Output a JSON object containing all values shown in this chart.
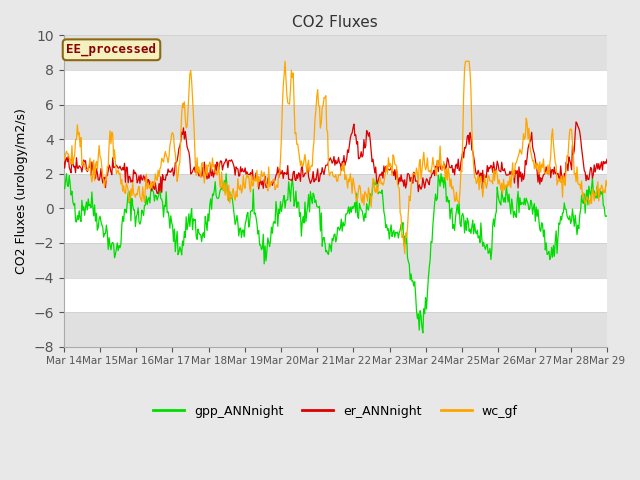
{
  "title": "CO2 Fluxes",
  "ylabel": "CO2 Fluxes (urology/m2/s)",
  "ylim": [
    -8,
    10
  ],
  "yticks": [
    -8,
    -6,
    -4,
    -2,
    0,
    2,
    4,
    6,
    8,
    10
  ],
  "date_labels": [
    "Mar 14",
    "Mar 15",
    "Mar 16",
    "Mar 17",
    "Mar 18",
    "Mar 19",
    "Mar 20",
    "Mar 21",
    "Mar 22",
    "Mar 23",
    "Mar 24",
    "Mar 25",
    "Mar 26",
    "Mar 27",
    "Mar 28",
    "Mar 29"
  ],
  "annotation": "EE_processed",
  "annotation_color": "#8B0000",
  "annotation_bg": "#F5F0C0",
  "annotation_edge": "#8B6914",
  "line_colors": {
    "gpp": "#00DD00",
    "er": "#DD0000",
    "wc": "#FFA500"
  },
  "legend_labels": [
    "gpp_ANNnight",
    "er_ANNnight",
    "wc_gf"
  ],
  "fig_bg_color": "#E8E8E8",
  "plot_bg": "#FFFFFF",
  "band_color": "#E0E0E0",
  "seed": 42,
  "n_points": 600,
  "title_fontsize": 11,
  "label_fontsize": 9
}
